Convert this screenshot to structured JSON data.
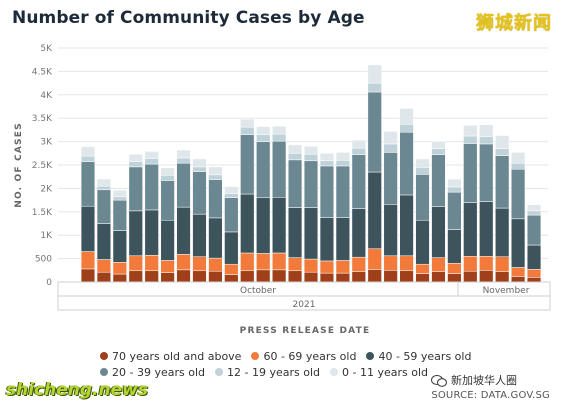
{
  "title": "Number of Community Cases by Age",
  "watermark_top": "狮城新闻",
  "watermark_bottom": "shicheng.news",
  "watermark_wechat": "新加坡华人圈",
  "source": "SOURCE: DATA.GOV.SG",
  "colors": {
    "70+": "#a0401a",
    "60-69": "#f27a3a",
    "40-59": "#3e545c",
    "20-39": "#6b8791",
    "12-19": "#bfd1d9",
    "0-11": "#dfe7eb"
  },
  "chart_data": {
    "type": "bar",
    "stacked": true,
    "title": "Number of Community Cases by Age",
    "xlabel": "PRESS RELEASE DATE",
    "ylabel": "NO. OF CASES",
    "ylim": [
      0,
      5000
    ],
    "y_ticks": [
      "0",
      "500",
      "1K",
      "1.5K",
      "2K",
      "2.5K",
      "3K",
      "3.5K",
      "4K",
      "4.5K",
      "5K"
    ],
    "x_group_labels": [
      "October",
      "November"
    ],
    "x_year_label": "2021",
    "legend_position": "bottom",
    "grid": true,
    "series": [
      {
        "name": "70 years old and above",
        "key": "70+",
        "values": [
          280,
          210,
          170,
          240,
          240,
          200,
          260,
          240,
          230,
          160,
          240,
          260,
          260,
          240,
          210,
          190,
          190,
          220,
          270,
          250,
          240,
          180,
          220,
          180,
          230,
          250,
          220,
          120,
          100
        ]
      },
      {
        "name": "60 - 69 years old",
        "key": "60-69",
        "values": [
          370,
          270,
          250,
          320,
          330,
          260,
          330,
          300,
          280,
          220,
          380,
          350,
          360,
          280,
          280,
          260,
          270,
          310,
          440,
          310,
          320,
          200,
          300,
          220,
          320,
          300,
          320,
          190,
          170
        ]
      },
      {
        "name": "40 - 59 years old",
        "key": "40-59",
        "values": [
          970,
          770,
          680,
          960,
          970,
          860,
          1010,
          910,
          860,
          690,
          1260,
          1190,
          1190,
          1070,
          1100,
          930,
          920,
          1040,
          1640,
          1100,
          1300,
          940,
          1090,
          720,
          1150,
          1170,
          1040,
          1040,
          520
        ]
      },
      {
        "name": "20 - 39 years old",
        "key": "20-39",
        "values": [
          950,
          720,
          650,
          940,
          980,
          850,
          940,
          910,
          820,
          730,
          1270,
          1200,
          1200,
          1020,
          1000,
          1100,
          1100,
          1150,
          1710,
          1110,
          1340,
          980,
          1110,
          800,
          1260,
          1230,
          1120,
          1060,
          640
        ]
      },
      {
        "name": "12 - 19 years old",
        "key": "12-19",
        "values": [
          120,
          80,
          70,
          110,
          120,
          110,
          110,
          100,
          100,
          90,
          160,
          150,
          150,
          140,
          140,
          110,
          120,
          140,
          190,
          180,
          170,
          150,
          130,
          110,
          160,
          160,
          150,
          130,
          90
        ]
      },
      {
        "name": "0 - 11 years old",
        "key": "0-11",
        "values": [
          200,
          150,
          140,
          160,
          150,
          160,
          170,
          170,
          170,
          150,
          170,
          170,
          170,
          180,
          170,
          160,
          170,
          170,
          390,
          270,
          340,
          180,
          150,
          170,
          230,
          250,
          280,
          230,
          130
        ]
      }
    ]
  }
}
